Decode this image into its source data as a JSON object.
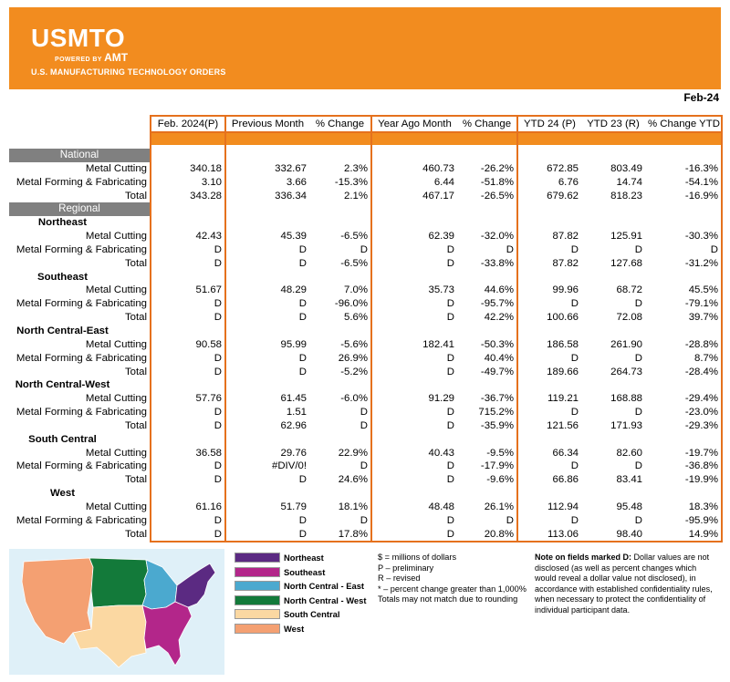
{
  "header": {
    "logo": "USMTO",
    "powered_by": "POWERED BY",
    "powered_brand": "AMT",
    "subtitle": "U.S. MANUFACTURING TECHNOLOGY ORDERS",
    "banner_color": "#f28c1f"
  },
  "report_date": "Feb-24",
  "columns": [
    "Feb. 2024(P)",
    "Previous Month",
    "% Change",
    "Year Ago Month",
    "% Change",
    "YTD 24 (P)",
    "YTD 23 (R)",
    "% Change YTD"
  ],
  "sections": {
    "national": "National",
    "regional": "Regional"
  },
  "national_rows": [
    {
      "label": "Metal Cutting",
      "v": [
        "340.18",
        "332.67",
        "2.3%",
        "460.73",
        "-26.2%",
        "672.85",
        "803.49",
        "-16.3%"
      ]
    },
    {
      "label": "Metal Forming & Fabricating",
      "v": [
        "3.10",
        "3.66",
        "-15.3%",
        "6.44",
        "-51.8%",
        "6.76",
        "14.74",
        "-54.1%"
      ]
    },
    {
      "label": "Total",
      "v": [
        "343.28",
        "336.34",
        "2.1%",
        "467.17",
        "-26.5%",
        "679.62",
        "818.23",
        "-16.9%"
      ]
    }
  ],
  "regions": [
    {
      "name": "Northeast",
      "rows": [
        {
          "label": "Metal Cutting",
          "v": [
            "42.43",
            "45.39",
            "-6.5%",
            "62.39",
            "-32.0%",
            "87.82",
            "125.91",
            "-30.3%"
          ]
        },
        {
          "label": "Metal Forming & Fabricating",
          "v": [
            "D",
            "D",
            "D",
            "D",
            "D",
            "D",
            "D",
            "D"
          ]
        },
        {
          "label": "Total",
          "v": [
            "D",
            "D",
            "-6.5%",
            "D",
            "-33.8%",
            "87.82",
            "127.68",
            "-31.2%"
          ]
        }
      ]
    },
    {
      "name": "Southeast",
      "rows": [
        {
          "label": "Metal Cutting",
          "v": [
            "51.67",
            "48.29",
            "7.0%",
            "35.73",
            "44.6%",
            "99.96",
            "68.72",
            "45.5%"
          ]
        },
        {
          "label": "Metal Forming & Fabricating",
          "v": [
            "D",
            "D",
            "-96.0%",
            "D",
            "-95.7%",
            "D",
            "D",
            "-79.1%"
          ]
        },
        {
          "label": "Total",
          "v": [
            "D",
            "D",
            "5.6%",
            "D",
            "42.2%",
            "100.66",
            "72.08",
            "39.7%"
          ]
        }
      ]
    },
    {
      "name": "North Central-East",
      "rows": [
        {
          "label": "Metal Cutting",
          "v": [
            "90.58",
            "95.99",
            "-5.6%",
            "182.41",
            "-50.3%",
            "186.58",
            "261.90",
            "-28.8%"
          ]
        },
        {
          "label": "Metal Forming & Fabricating",
          "v": [
            "D",
            "D",
            "26.9%",
            "D",
            "40.4%",
            "D",
            "D",
            "8.7%"
          ]
        },
        {
          "label": "Total",
          "v": [
            "D",
            "D",
            "-5.2%",
            "D",
            "-49.7%",
            "189.66",
            "264.73",
            "-28.4%"
          ]
        }
      ]
    },
    {
      "name": "North Central-West",
      "rows": [
        {
          "label": "Metal Cutting",
          "v": [
            "57.76",
            "61.45",
            "-6.0%",
            "91.29",
            "-36.7%",
            "119.21",
            "168.88",
            "-29.4%"
          ]
        },
        {
          "label": "Metal Forming & Fabricating",
          "v": [
            "D",
            "1.51",
            "D",
            "D",
            "715.2%",
            "D",
            "D",
            "-23.0%"
          ]
        },
        {
          "label": "Total",
          "v": [
            "D",
            "62.96",
            "D",
            "D",
            "-35.9%",
            "121.56",
            "171.93",
            "-29.3%"
          ]
        }
      ]
    },
    {
      "name": "South Central",
      "rows": [
        {
          "label": "Metal Cutting",
          "v": [
            "36.58",
            "29.76",
            "22.9%",
            "40.43",
            "-9.5%",
            "66.34",
            "82.60",
            "-19.7%"
          ]
        },
        {
          "label": "Metal Forming & Fabricating",
          "v": [
            "D",
            "#DIV/0!",
            "D",
            "D",
            "-17.9%",
            "D",
            "D",
            "-36.8%"
          ]
        },
        {
          "label": "Total",
          "v": [
            "D",
            "D",
            "24.6%",
            "D",
            "-9.6%",
            "66.86",
            "83.41",
            "-19.9%"
          ]
        }
      ]
    },
    {
      "name": "West",
      "rows": [
        {
          "label": "Metal Cutting",
          "v": [
            "61.16",
            "51.79",
            "18.1%",
            "48.48",
            "26.1%",
            "112.94",
            "95.48",
            "18.3%"
          ]
        },
        {
          "label": "Metal Forming & Fabricating",
          "v": [
            "D",
            "D",
            "D",
            "D",
            "D",
            "D",
            "D",
            "-95.9%"
          ]
        },
        {
          "label": "Total",
          "v": [
            "D",
            "D",
            "17.8%",
            "D",
            "20.8%",
            "113.06",
            "98.40",
            "14.9%"
          ]
        }
      ]
    }
  ],
  "legend": [
    {
      "label": "Northeast",
      "color": "#5b2a82"
    },
    {
      "label": "Southeast",
      "color": "#b3268a"
    },
    {
      "label": "North Central - East",
      "color": "#4ba9cf"
    },
    {
      "label": "North Central - West",
      "color": "#137a3a"
    },
    {
      "label": "South Central",
      "color": "#fbd8a2"
    },
    {
      "label": "West",
      "color": "#f4a072"
    }
  ],
  "notes": [
    "$ = millions of dollars",
    "P – preliminary",
    "R – revised",
    "* – percent change greater than 1,000%",
    "Totals may not match due to rounding"
  ],
  "disclosure": {
    "title": "Note on fields marked D:",
    "text": " Dollar values are not disclosed (as well as percent changes which would reveal a dollar value not disclosed), in accordance with established confidentiality rules, when necessary to protect the confidentiality of individual participant data."
  }
}
